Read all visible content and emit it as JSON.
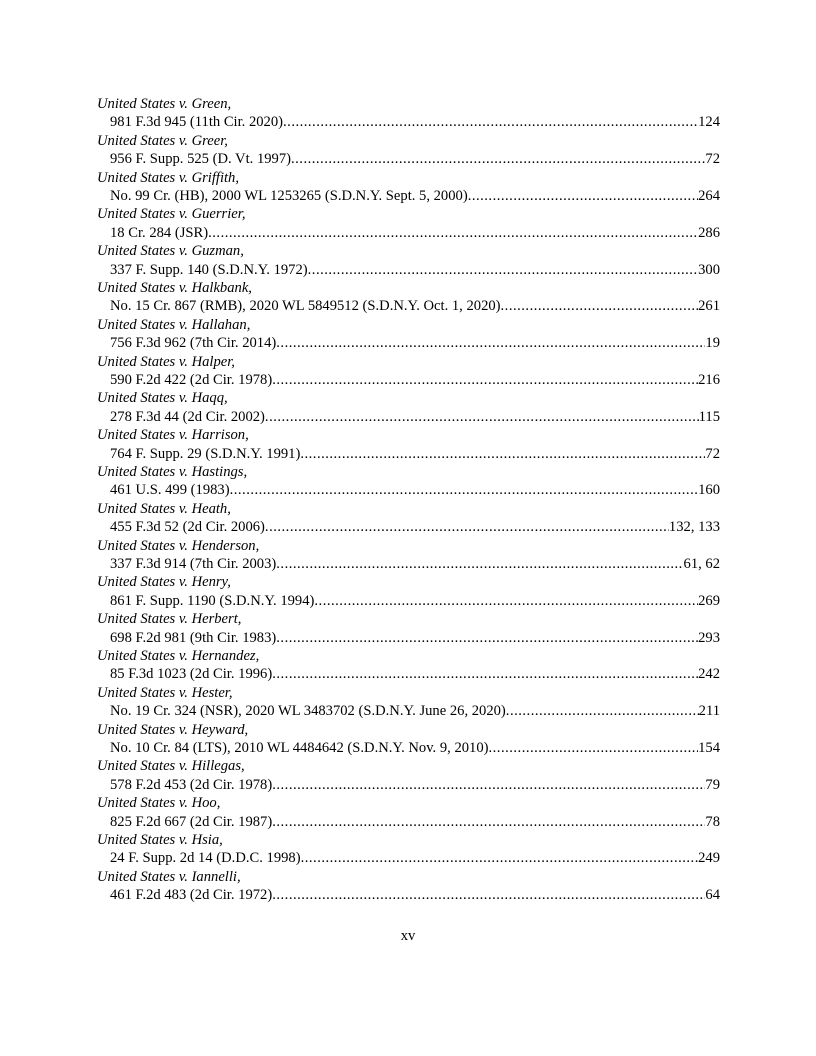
{
  "entries": [
    {
      "name": "United States v. Green,",
      "cite": "981 F.3d 945 (11th Cir. 2020)",
      "pages": "124"
    },
    {
      "name": "United States v. Greer,",
      "cite": "956 F. Supp. 525 (D. Vt. 1997)",
      "pages": "72"
    },
    {
      "name": "United States v. Griffith,",
      "cite": "No. 99 Cr.  (HB), 2000 WL 1253265 (S.D.N.Y. Sept. 5, 2000)",
      "pages": "264"
    },
    {
      "name": "United States v. Guerrier,",
      "cite": "18 Cr. 284 (JSR)",
      "pages": "286"
    },
    {
      "name": "United States v. Guzman,",
      "cite": "337 F. Supp. 140 (S.D.N.Y. 1972)",
      "pages": "300"
    },
    {
      "name": "United States v. Halkbank,",
      "cite": "No. 15 Cr. 867 (RMB), 2020 WL 5849512 (S.D.N.Y. Oct. 1, 2020)",
      "pages": "261"
    },
    {
      "name": "United States v. Hallahan,",
      "cite": "756 F.3d 962 (7th Cir. 2014)",
      "pages": "19"
    },
    {
      "name": "United States v. Halper,",
      "cite": "590 F.2d 422 (2d Cir. 1978)",
      "pages": "216"
    },
    {
      "name": "United States v. Haqq,",
      "cite": "278 F.3d 44 (2d Cir. 2002)",
      "pages": "115"
    },
    {
      "name": "United States v. Harrison,",
      "cite": "764 F. Supp. 29 (S.D.N.Y. 1991)",
      "pages": "72"
    },
    {
      "name": "United States v. Hastings,",
      "cite": "461 U.S. 499 (1983) ",
      "pages": "160"
    },
    {
      "name": "United States v. Heath,",
      "cite": "455 F.3d 52 (2d Cir. 2006)",
      "pages": "132, 133"
    },
    {
      "name": "United States v. Henderson,",
      "cite": "337 F.3d 914 (7th Cir. 2003)",
      "pages": "61, 62"
    },
    {
      "name": "United States v. Henry,",
      "cite": "861 F. Supp. 1190 (S.D.N.Y. 1994)",
      "pages": "269"
    },
    {
      "name": "United States v. Herbert,",
      "cite": "698 F.2d 981 (9th Cir. 1983)",
      "pages": "293"
    },
    {
      "name": "United States v. Hernandez,",
      "cite": "85 F.3d 1023 (2d Cir. 1996)",
      "pages": "242"
    },
    {
      "name": "United States v. Hester,",
      "cite": "No. 19 Cr. 324 (NSR), 2020 WL 3483702 (S.D.N.Y. June 26, 2020)",
      "pages": "211"
    },
    {
      "name": "United States v. Heyward,",
      "cite": "No. 10 Cr. 84 (LTS), 2010 WL 4484642 (S.D.N.Y. Nov. 9, 2010)",
      "pages": "154"
    },
    {
      "name": "United States v. Hillegas,",
      "cite": "578 F.2d 453 (2d Cir. 1978)",
      "pages": "79"
    },
    {
      "name": "United States v. Hoo,",
      "cite": "825 F.2d 667 (2d Cir. 1987)",
      "pages": "78"
    },
    {
      "name": "United States v. Hsia,",
      "cite": "24 F. Supp. 2d 14 (D.D.C. 1998) ",
      "pages": "249"
    },
    {
      "name": "United States v. Iannelli,",
      "cite": "461 F.2d 483 (2d Cir. 1972)",
      "pages": "64"
    }
  ],
  "page_number": "xv"
}
